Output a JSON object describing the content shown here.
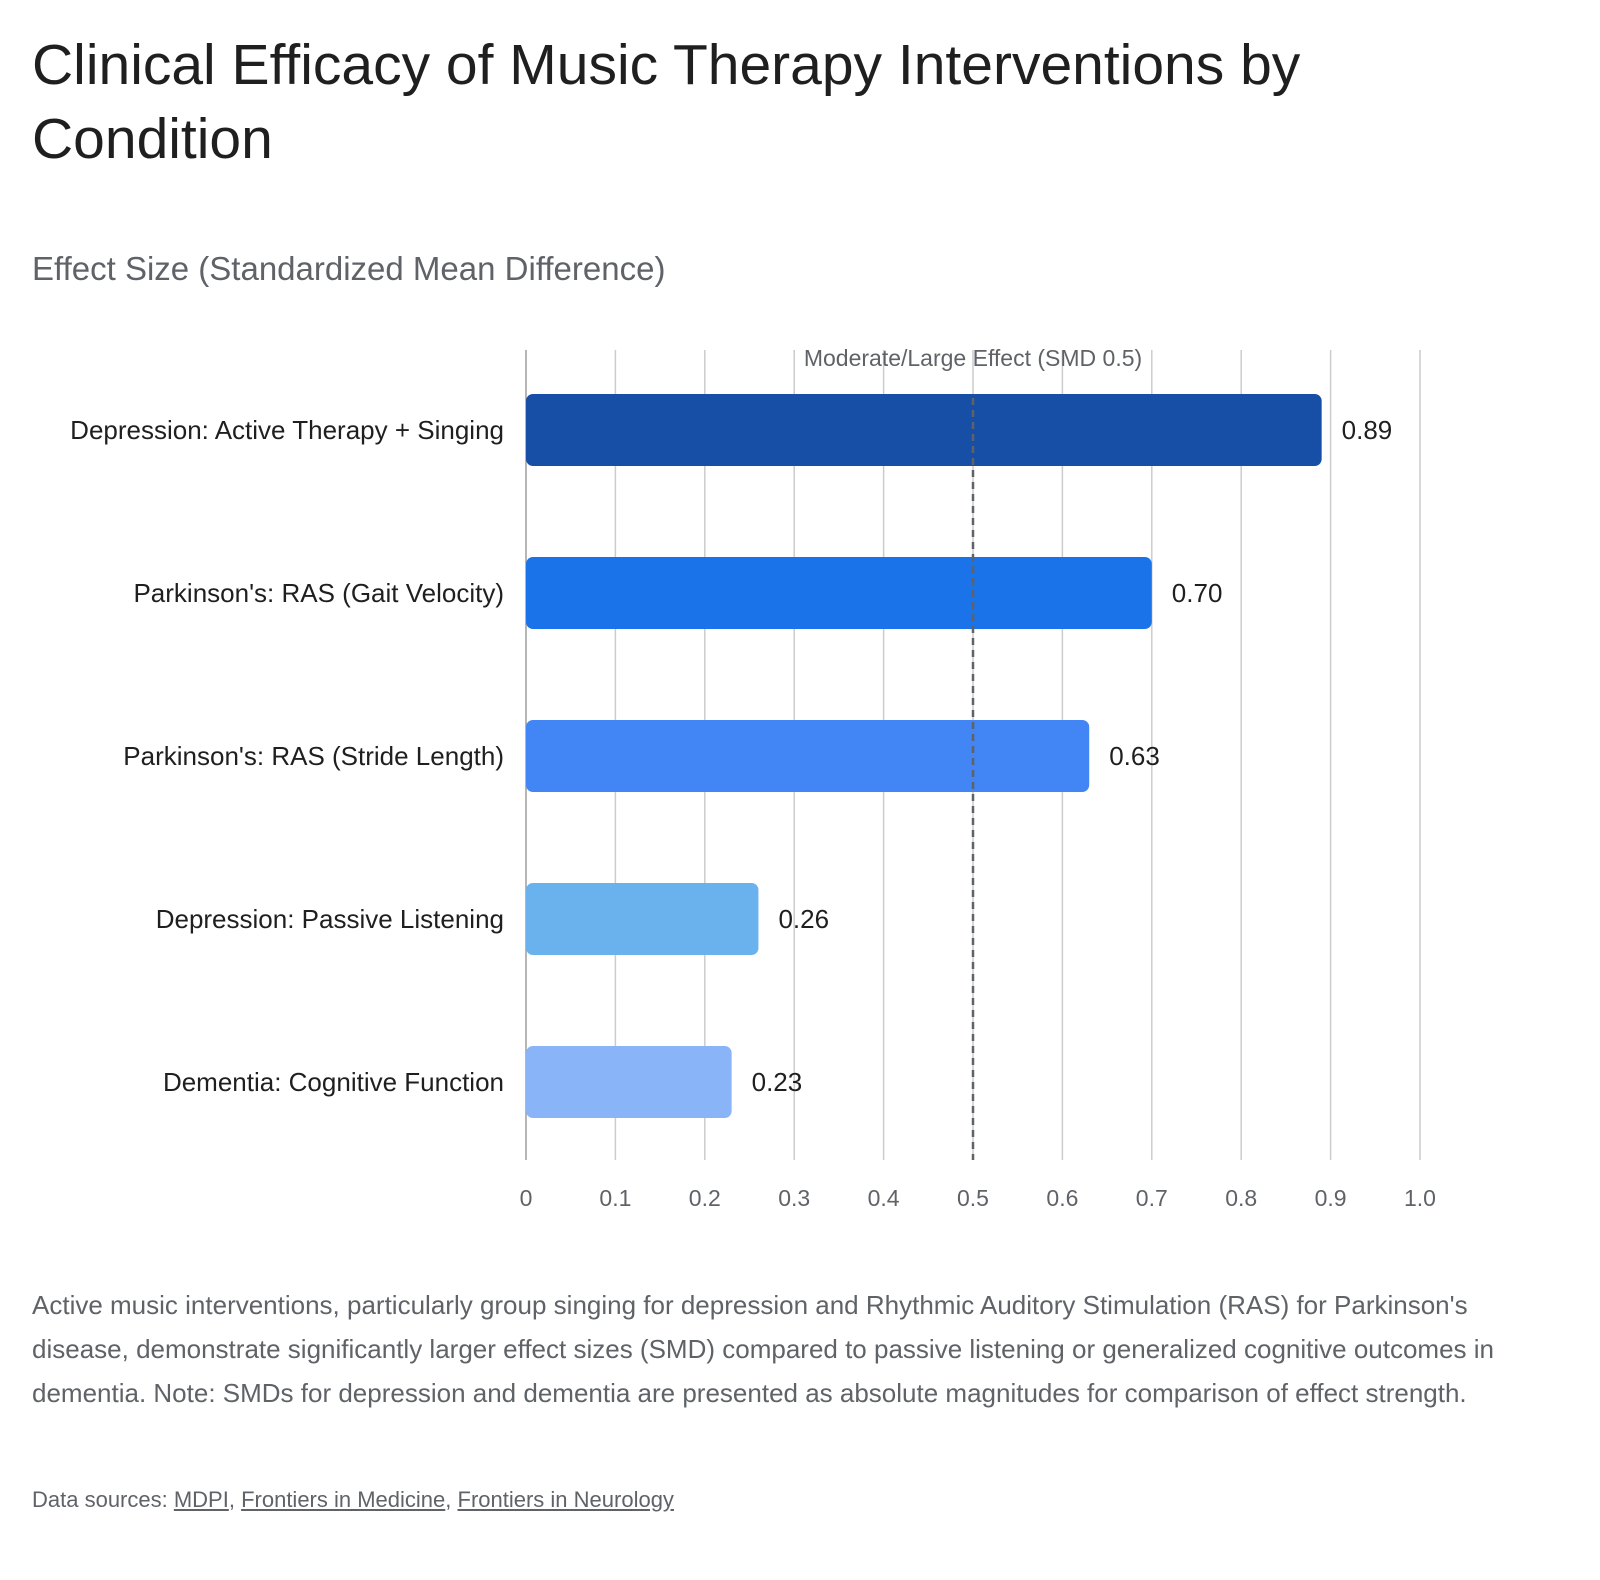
{
  "header": {
    "title": "Clinical Efficacy of Music Therapy Interventions by Condition",
    "subtitle": "Effect Size (Standardized Mean Difference)"
  },
  "chart_data": {
    "type": "bar",
    "orientation": "horizontal",
    "categories": [
      "Depression: Active Therapy + Singing",
      "Parkinson's: RAS (Gait Velocity)",
      "Parkinson's: RAS (Stride Length)",
      "Depression: Passive Listening",
      "Dementia: Cognitive Function"
    ],
    "values": [
      0.89,
      0.7,
      0.63,
      0.26,
      0.23
    ],
    "value_labels": [
      "0.89",
      "0.70",
      "0.63",
      "0.26",
      "0.23"
    ],
    "colors": [
      "#174ea6",
      "#1a73e8",
      "#4285f4",
      "#6ab2ee",
      "#8ab4f8"
    ],
    "xlim": [
      0,
      1.0
    ],
    "xticks": [
      0,
      0.1,
      0.2,
      0.3,
      0.4,
      0.5,
      0.6,
      0.7,
      0.8,
      0.9,
      1.0
    ],
    "xtick_labels": [
      "0",
      "0.1",
      "0.2",
      "0.3",
      "0.4",
      "0.5",
      "0.6",
      "0.7",
      "0.8",
      "0.9",
      "1.0"
    ],
    "grid": true,
    "reference_line": {
      "value": 0.5,
      "label": "Moderate/Large Effect (SMD 0.5)",
      "style": "dashed",
      "color": "#5f6368"
    },
    "xlabel": "",
    "ylabel": ""
  },
  "footer": {
    "caption": "Active music interventions, particularly group singing for depression and Rhythmic Auditory Stimulation (RAS) for Parkinson's disease, demonstrate significantly larger effect sizes (SMD) compared to passive listening or generalized cognitive outcomes in dementia. Note: SMDs for depression and dementia are presented as absolute magnitudes for comparison of effect strength.",
    "sources_prefix": "Data sources: ",
    "sources": [
      "MDPI",
      "Frontiers in Medicine",
      "Frontiers in Neurology"
    ],
    "separator": ", "
  }
}
